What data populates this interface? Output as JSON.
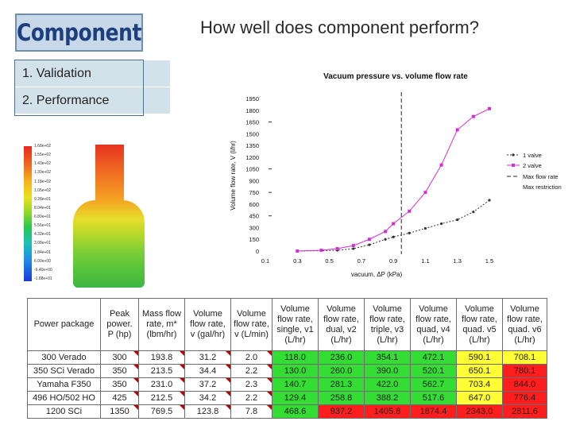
{
  "tag": {
    "label": "Component"
  },
  "slide_title": "How well does component perform?",
  "nav": {
    "items": [
      {
        "label": "1.  Validation"
      },
      {
        "label": "2.  Performance"
      }
    ]
  },
  "fea_legend": [
    "1.68e+02",
    "1.55e+02",
    "1.43e+02",
    "1.30e+02",
    "1.18e+02",
    "1.05e+02",
    "9.28e+01",
    "8.04e+01",
    "6.80e+01",
    "5.56e+01",
    "4.32e+01",
    "3.08e+01",
    "1.84e+01",
    "6.00e+00",
    "-6.40e+00",
    "-1.88e+01"
  ],
  "chart_data": {
    "type": "line",
    "title": "Vacuum pressure vs. volume flow rate",
    "xlabel": "vacuum, ΔP (kPa)",
    "ylabel": "Volume flow rate, V (l/hr)",
    "xlim": [
      0.1,
      1.5
    ],
    "ylim": [
      0,
      1950
    ],
    "x_ticks": [
      "0.1",
      "0.3",
      "0.5",
      "0.7",
      "0.9",
      "1.1",
      "1.3",
      "1.5"
    ],
    "y_ticks": [
      "0",
      "150",
      "300",
      "450",
      "600",
      "750",
      "900",
      "1050",
      "1200",
      "1350",
      "1500",
      "1650",
      "1800",
      "1950"
    ],
    "series": [
      {
        "name": "1 valve",
        "color": "#333333",
        "x": [
          0.3,
          0.45,
          0.55,
          0.65,
          0.75,
          0.85,
          0.9,
          1.0,
          1.1,
          1.2,
          1.3,
          1.4,
          1.5
        ],
        "y": [
          0,
          5,
          10,
          30,
          80,
          150,
          180,
          230,
          290,
          350,
          400,
          500,
          650
        ]
      },
      {
        "name": "2 valve",
        "color": "#d22fd2",
        "x": [
          0.3,
          0.45,
          0.55,
          0.65,
          0.75,
          0.85,
          0.9,
          1.0,
          1.1,
          1.2,
          1.3,
          1.4,
          1.5
        ],
        "y": [
          0,
          10,
          30,
          70,
          150,
          250,
          350,
          510,
          750,
          1100,
          1550,
          1720,
          1820
        ]
      }
    ],
    "vertical_line": {
      "label": "Max flow rate",
      "x": 0.95
    },
    "dashed_h_marks_y": [
      1650,
      1050,
      750,
      450
    ],
    "extra_legend": "Max restriction",
    "legend": "right",
    "grid": false
  },
  "table": {
    "headers": [
      "Power package",
      "Peak\npower.\nP (hp)",
      "Mass flow\nrate, m*\n(lbm/hr)",
      "Volume\nflow rate,\nv (gal/hr)",
      "Volume\nflow rate,\nv (L/min)",
      "Volume\nflow rate,\nsingle, v1\n(L/hr)",
      "Volume\nflow rate,\ndual, v2\n(L/hr)",
      "Volume\nflow rate,\ntriple, v3\n(L/hr)",
      "Volume\nflow rate,\nquad, v4\n(L/hr)",
      "Volume\nflow rate,\nquad. v5\n(L/hr)",
      "Volume\nflow rate,\nquad. v6\n(L/hr)"
    ],
    "rows": [
      {
        "cells": [
          "300 Verado",
          "300",
          "193.8",
          "31.2",
          "2.0",
          "118.0",
          "236.0",
          "354.1",
          "472.1",
          "590.1",
          "708.1"
        ],
        "colors": [
          "",
          "",
          "",
          "",
          "",
          "green",
          "green",
          "green",
          "green",
          "yellow",
          "yellow"
        ]
      },
      {
        "cells": [
          "350 SCi Verado",
          "350",
          "213.5",
          "34.4",
          "2.2",
          "130.0",
          "260.0",
          "390.0",
          "520.1",
          "650.1",
          "780.1"
        ],
        "colors": [
          "",
          "",
          "",
          "",
          "",
          "green",
          "green",
          "green",
          "green",
          "yellow",
          "red"
        ]
      },
      {
        "cells": [
          "Yamaha F350",
          "350",
          "231.0",
          "37.2",
          "2.3",
          "140.7",
          "281.3",
          "422.0",
          "562.7",
          "703.4",
          "844.0"
        ],
        "colors": [
          "",
          "",
          "",
          "",
          "",
          "green",
          "green",
          "green",
          "green",
          "yellow",
          "red"
        ]
      },
      {
        "cells": [
          "496 HO/502 HO",
          "425",
          "212.5",
          "34.2",
          "2.2",
          "129.4",
          "258.8",
          "388.2",
          "517.6",
          "647.0",
          "776.4"
        ],
        "colors": [
          "",
          "",
          "",
          "",
          "",
          "green",
          "green",
          "green",
          "green",
          "yellow",
          "red"
        ]
      },
      {
        "cells": [
          "1200 SCi",
          "1350",
          "769.5",
          "123.8",
          "7.8",
          "468.6",
          "937.2",
          "1405.8",
          "1874.4",
          "2343.0",
          "2811.6"
        ],
        "colors": [
          "",
          "",
          "",
          "",
          "",
          "green",
          "red",
          "red",
          "red",
          "red",
          "red"
        ]
      }
    ]
  }
}
